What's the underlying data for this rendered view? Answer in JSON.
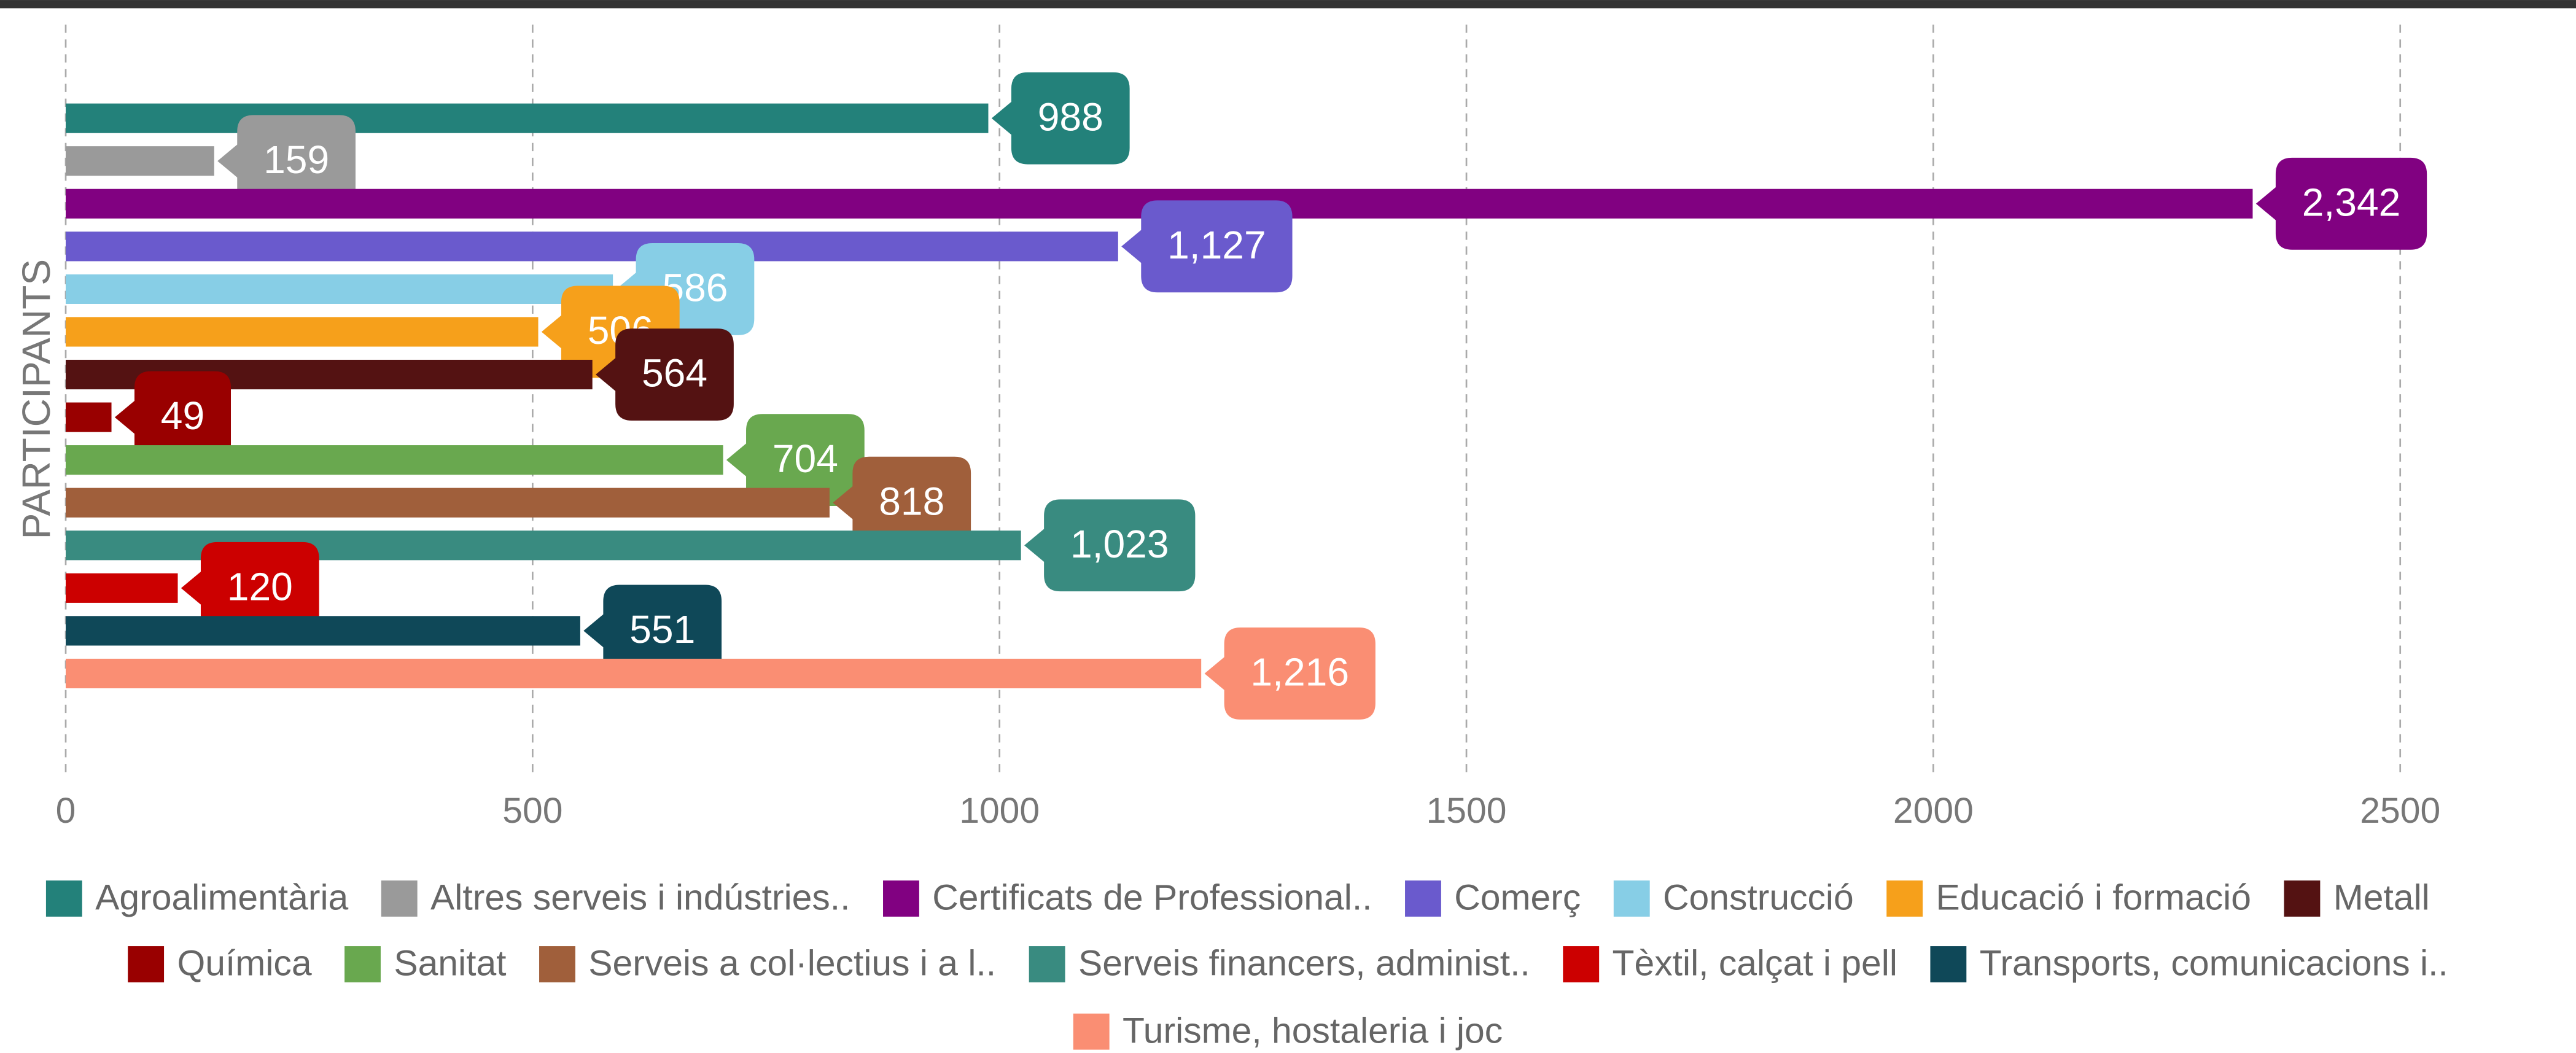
{
  "chart_data": {
    "type": "bar",
    "orientation": "horizontal",
    "y_label": "PARTICIPANTS",
    "xlim": [
      0,
      2690
    ],
    "xticks": [
      0,
      500,
      1000,
      1500,
      2000,
      2500
    ],
    "grid": true,
    "legend": "bottom",
    "series": [
      {
        "name": "Agroalimentària",
        "color": "#23817a",
        "values": [
          988
        ]
      },
      {
        "name": "Altres serveis i indústries..",
        "color": "#9a9a9a",
        "values": [
          159
        ]
      },
      {
        "name": "Certificats de Professional..",
        "color": "#810181",
        "values": [
          2342
        ],
        "value_labels": [
          "2,342"
        ]
      },
      {
        "name": "Comerç",
        "color": "#6a5acd",
        "values": [
          1127
        ],
        "value_labels": [
          "1,127"
        ]
      },
      {
        "name": "Construcció",
        "color": "#87cee6",
        "values": [
          586
        ]
      },
      {
        "name": "Educació i formació",
        "color": "#f6a01b",
        "values": [
          506
        ]
      },
      {
        "name": "Metall",
        "color": "#541212",
        "values": [
          564
        ]
      },
      {
        "name": "Química",
        "color": "#990000",
        "values": [
          49
        ]
      },
      {
        "name": "Sanitat",
        "color": "#69a84f",
        "values": [
          704
        ]
      },
      {
        "name": "Serveis a col·lectius i a l..",
        "color": "#a05f3b",
        "values": [
          818
        ]
      },
      {
        "name": "Serveis financers, administ..",
        "color": "#398b80",
        "values": [
          1023
        ],
        "value_labels": [
          "1,023"
        ]
      },
      {
        "name": "Tèxtil, calçat i pell",
        "color": "#cc0000",
        "values": [
          120
        ]
      },
      {
        "name": "Transports, comunicacions i..",
        "color": "#0f4858",
        "values": [
          551
        ]
      },
      {
        "name": "Turisme, hostaleria i joc",
        "color": "#fa8e73",
        "values": [
          1216
        ],
        "value_labels": [
          "1,216"
        ]
      }
    ]
  }
}
